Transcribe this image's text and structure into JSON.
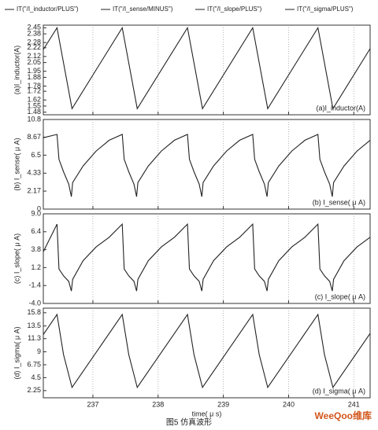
{
  "chart_data": [
    {
      "type": "line",
      "ylabel": "(a)I_inductor(A)",
      "annotation": "(a)I_inductor(A)",
      "xlim": [
        236.24,
        241.25
      ],
      "ylim": [
        1.45,
        2.48
      ],
      "yticks": [
        1.48,
        1.55,
        1.62,
        1.72,
        1.78,
        1.88,
        1.95,
        2.05,
        2.12,
        2.22,
        2.28,
        2.38,
        2.45
      ],
      "x": [
        236.24,
        236.45,
        236.68,
        237.45,
        237.68,
        238.45,
        238.68,
        239.45,
        239.68,
        240.45,
        240.68,
        241.25
      ],
      "series": [
        {
          "name": "IT(\"/I_inductor/PLUS\")",
          "color": "#222",
          "values": [
            2.2,
            2.45,
            1.52,
            2.45,
            1.52,
            2.45,
            1.52,
            2.45,
            1.52,
            2.45,
            1.52,
            2.21
          ]
        }
      ]
    },
    {
      "type": "line",
      "ylabel": "(b) I_sense( μ A)",
      "annotation": "(b) I_sense( μ A)",
      "xlim": [
        236.24,
        241.25
      ],
      "ylim": [
        0,
        10.8
      ],
      "yticks": [
        0,
        2.17,
        4.33,
        6.5,
        8.67,
        10.8
      ],
      "x": [
        236.24,
        236.45,
        236.48,
        236.55,
        236.63,
        236.67,
        236.69,
        236.85,
        237.05,
        237.25,
        237.45,
        237.48,
        237.55,
        237.63,
        237.67,
        237.69,
        237.85,
        238.05,
        238.25,
        238.45,
        238.48,
        238.55,
        238.63,
        238.67,
        238.69,
        238.85,
        239.05,
        239.25,
        239.45,
        239.48,
        239.55,
        239.63,
        239.67,
        239.69,
        239.85,
        240.05,
        240.25,
        240.45,
        240.48,
        240.55,
        240.63,
        240.67,
        240.69,
        240.85,
        241.05,
        241.25
      ],
      "series": [
        {
          "name": "IT(\"/I_sense/MINUS\")",
          "color": "#222",
          "values": [
            8.6,
            9.0,
            6.0,
            4.5,
            3.0,
            1.5,
            3.2,
            5.2,
            7.0,
            8.3,
            9.0,
            6.0,
            4.5,
            3.0,
            1.5,
            3.2,
            5.2,
            7.0,
            8.3,
            9.0,
            6.0,
            4.5,
            3.0,
            1.5,
            3.2,
            5.2,
            7.0,
            8.3,
            9.0,
            6.0,
            4.5,
            3.0,
            1.5,
            3.2,
            5.2,
            7.0,
            8.3,
            9.0,
            6.0,
            4.5,
            3.0,
            1.5,
            3.2,
            5.2,
            7.0,
            8.3
          ]
        }
      ]
    },
    {
      "type": "line",
      "ylabel": "(c) I_slope( μ A)",
      "annotation": "(c) I_slope( μ A)",
      "xlim": [
        236.24,
        241.25
      ],
      "ylim": [
        -4.0,
        9.0
      ],
      "yticks": [
        {
          "value": -4.0,
          "label": "-4.0"
        },
        -1.4,
        1.2,
        3.8,
        6.4,
        {
          "value": 9.0,
          "label": "9.0"
        }
      ],
      "x": [
        236.24,
        236.45,
        236.48,
        236.55,
        236.63,
        236.67,
        236.69,
        236.85,
        237.05,
        237.25,
        237.45,
        237.48,
        237.55,
        237.63,
        237.67,
        237.69,
        237.85,
        238.05,
        238.25,
        238.45,
        238.48,
        238.55,
        238.63,
        238.67,
        238.69,
        238.85,
        239.05,
        239.25,
        239.45,
        239.48,
        239.55,
        239.63,
        239.67,
        239.69,
        239.85,
        240.05,
        240.25,
        240.45,
        240.48,
        240.55,
        240.63,
        240.67,
        240.69,
        240.85,
        241.05,
        241.25
      ],
      "series": [
        {
          "name": "IT(\"/I_slope/PLUS\")",
          "color": "#222",
          "values": [
            3.5,
            7.5,
            1.0,
            0.0,
            -0.8,
            -2.2,
            -0.5,
            2.2,
            4.2,
            5.6,
            7.5,
            1.0,
            0.0,
            -0.8,
            -2.2,
            -0.5,
            2.2,
            4.2,
            5.6,
            7.5,
            1.0,
            0.0,
            -0.8,
            -2.2,
            -0.5,
            2.2,
            4.2,
            5.6,
            7.5,
            1.0,
            0.0,
            -0.8,
            -2.2,
            -0.5,
            2.2,
            4.2,
            5.6,
            7.5,
            1.0,
            0.0,
            -0.8,
            -2.2,
            -0.5,
            2.2,
            4.2,
            5.6
          ]
        }
      ]
    },
    {
      "type": "line",
      "ylabel": "(d) I_sigma( μ A)",
      "annotation": "(d) I_sigma( μ A)",
      "xlabel": "time( μ s)",
      "xlim": [
        236.24,
        241.25
      ],
      "ylim": [
        1.0,
        16.6
      ],
      "xticks": [
        237,
        238,
        239,
        240,
        241
      ],
      "yticks": [
        2.25,
        4.5,
        6.75,
        9,
        11.3,
        13.5,
        15.8
      ],
      "x": [
        236.24,
        236.45,
        236.55,
        236.68,
        237.45,
        237.55,
        237.68,
        238.45,
        238.55,
        238.68,
        239.45,
        239.55,
        239.68,
        240.45,
        240.55,
        240.68,
        241.25
      ],
      "series": [
        {
          "name": "IT(\"/I_sigma/PLUS\")",
          "color": "#222",
          "values": [
            12.0,
            15.5,
            8.5,
            2.8,
            15.5,
            8.5,
            2.8,
            15.5,
            8.5,
            2.8,
            15.5,
            8.5,
            2.8,
            15.5,
            8.5,
            2.8,
            12.2
          ]
        }
      ]
    }
  ],
  "caption": "图5  仿真波形",
  "watermark": "WeeQoo维库"
}
